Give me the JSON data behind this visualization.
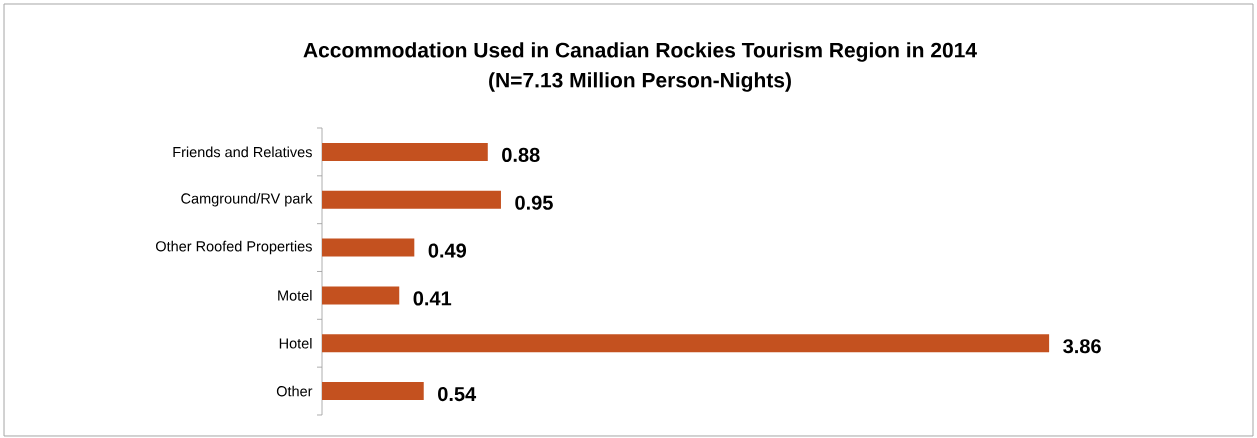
{
  "chart_data": {
    "type": "bar",
    "orientation": "horizontal",
    "title": "Accommodation Used in Canadian Rockies Tourism Region in 2014",
    "subtitle": "(N=7.13 Million Person-Nights)",
    "categories": [
      "Friends and Relatives",
      "Camground/RV park",
      "Other Roofed Properties",
      "Motel",
      "Hotel",
      "Other"
    ],
    "values": [
      0.88,
      0.95,
      0.49,
      0.41,
      3.86,
      0.54
    ],
    "color": "#c4511f",
    "data_labels": true
  }
}
